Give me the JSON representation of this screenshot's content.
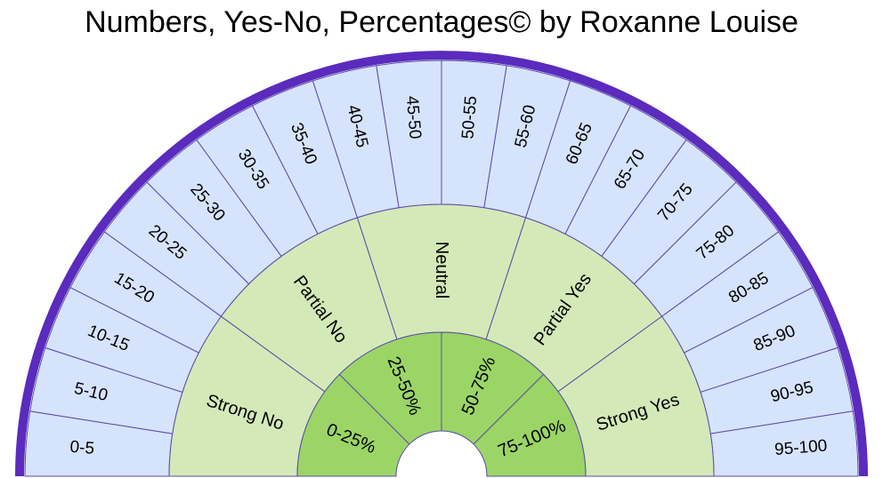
{
  "title": "Numbers, Yes-No, Percentages© by Roxanne Louise",
  "colors": {
    "outer_band": "#d6e3fc",
    "middle_band": "#d3eab8",
    "inner_band": "#9bd566",
    "divider": "#5b4aa8",
    "rim": "#5a2bbd"
  },
  "outer_segments": [
    "0-5",
    "5-10",
    "10-15",
    "15-20",
    "20-25",
    "25-30",
    "30-35",
    "35-40",
    "40-45",
    "45-50",
    "50-55",
    "55-60",
    "60-65",
    "65-70",
    "70-75",
    "75-80",
    "80-85",
    "85-90",
    "90-95",
    "95-100"
  ],
  "middle_segments": [
    "Strong No",
    "Partial No",
    "Neutral",
    "Partial Yes",
    "Strong Yes"
  ],
  "inner_segments": [
    "0-25%",
    "25-50%",
    "50-75%",
    "75-100%"
  ]
}
